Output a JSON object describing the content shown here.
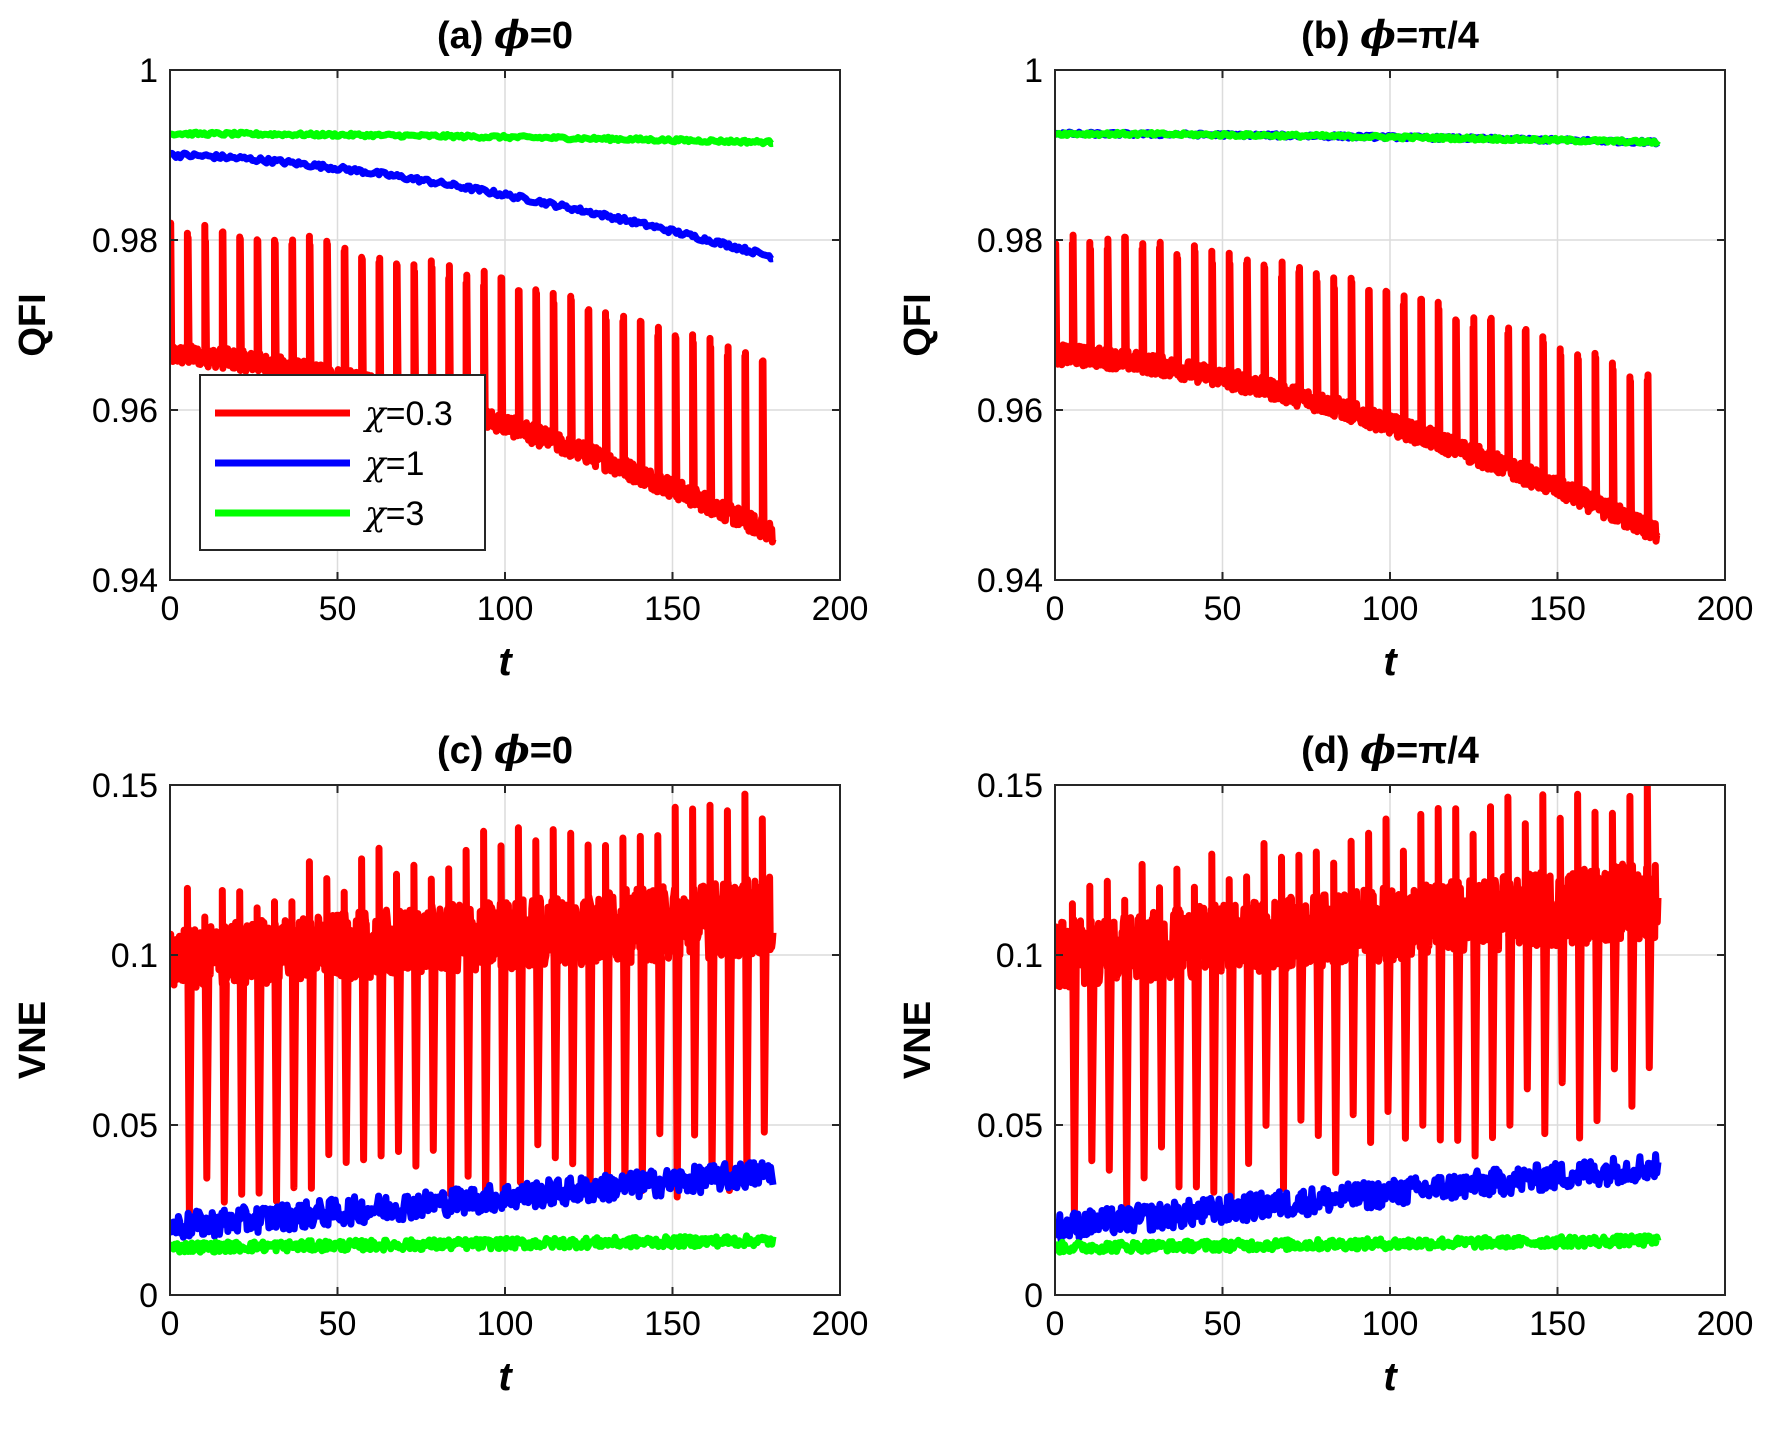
{
  "figure": {
    "legend": [
      {
        "symbol": "χ",
        "value": "=0.3",
        "color": "#ff0000"
      },
      {
        "symbol": "χ",
        "value": "=1",
        "color": "#0000ff"
      },
      {
        "symbol": "χ",
        "value": "=3",
        "color": "#00ff00"
      }
    ]
  },
  "chart_data": [
    {
      "type": "line",
      "panel": "a",
      "title_prefix": "(a) ",
      "title_symbol": "ϕ",
      "title_suffix": "=0",
      "xlabel": "t",
      "ylabel": "QFI",
      "xlim": [
        0,
        200
      ],
      "ylim": [
        0.94,
        1.0
      ],
      "x_ticks": [
        "0",
        "50",
        "100",
        "150",
        "200"
      ],
      "y_ticks": [
        "0.94",
        "0.96",
        "0.98",
        "1"
      ],
      "grid": true,
      "legend_position": "lower-left",
      "t_range": [
        0,
        180
      ],
      "series": [
        {
          "name": "χ=0.3",
          "color": "#ff0000",
          "base_start": 0.9665,
          "base_end": 0.9455,
          "spike_start": 0.981,
          "spike_end": 0.965,
          "period": 5.2,
          "noise": 0.0012
        },
        {
          "name": "χ=1",
          "color": "#0000ff",
          "start": 0.99,
          "end": 0.978,
          "noise": 0.0003
        },
        {
          "name": "χ=3",
          "color": "#00ff00",
          "start": 0.9925,
          "end": 0.9915,
          "noise": 0.0002
        }
      ]
    },
    {
      "type": "line",
      "panel": "b",
      "title_prefix": "(b) ",
      "title_symbol": "ϕ",
      "title_suffix": "=π/4",
      "xlabel": "t",
      "ylabel": "QFI",
      "xlim": [
        0,
        200
      ],
      "ylim": [
        0.94,
        1.0
      ],
      "x_ticks": [
        "0",
        "50",
        "100",
        "150",
        "200"
      ],
      "y_ticks": [
        "0.94",
        "0.96",
        "0.98",
        "1"
      ],
      "grid": true,
      "t_range": [
        0,
        180
      ],
      "series": [
        {
          "name": "χ=0.3",
          "color": "#ff0000",
          "base_start": 0.9665,
          "base_end": 0.9455,
          "spike_start": 0.98,
          "spike_end": 0.963,
          "period": 5.2,
          "noise": 0.0012
        },
        {
          "name": "χ=1",
          "color": "#0000ff",
          "start": 0.9925,
          "end": 0.9915,
          "noise": 0.0002
        },
        {
          "name": "χ=3",
          "color": "#00ff00",
          "start": 0.9925,
          "end": 0.9915,
          "noise": 0.0002
        }
      ]
    },
    {
      "type": "line",
      "panel": "c",
      "title_prefix": "(c) ",
      "title_symbol": "ϕ",
      "title_suffix": "=0",
      "xlabel": "t",
      "ylabel": "VNE",
      "xlim": [
        0,
        200
      ],
      "ylim": [
        0,
        0.15
      ],
      "x_ticks": [
        "0",
        "50",
        "100",
        "150",
        "200"
      ],
      "y_ticks": [
        "0",
        "0.05",
        "0.1",
        "0.15"
      ],
      "grid": true,
      "t_range": [
        0,
        180
      ],
      "series": [
        {
          "name": "χ=0.3",
          "color": "#ff0000",
          "band_low_start": 0.09,
          "band_low_end": 0.1,
          "band_high_start": 0.108,
          "band_high_end": 0.123,
          "spike_start": 0.115,
          "spike_end": 0.145,
          "dip_start": 0.02,
          "dip_end": 0.03,
          "period": 5.2
        },
        {
          "name": "χ=1",
          "color": "#0000ff",
          "start": 0.02,
          "end": 0.036,
          "noise": 0.004
        },
        {
          "name": "χ=3",
          "color": "#00ff00",
          "start": 0.014,
          "end": 0.016,
          "noise": 0.0015
        }
      ]
    },
    {
      "type": "line",
      "panel": "d",
      "title_prefix": "(d) ",
      "title_symbol": "ϕ",
      "title_suffix": "=π/4",
      "xlabel": "t",
      "ylabel": "VNE",
      "xlim": [
        0,
        200
      ],
      "ylim": [
        0,
        0.15
      ],
      "x_ticks": [
        "0",
        "50",
        "100",
        "150",
        "200"
      ],
      "y_ticks": [
        "0",
        "0.05",
        "0.1",
        "0.15"
      ],
      "grid": true,
      "t_range": [
        0,
        180
      ],
      "series": [
        {
          "name": "χ=0.3",
          "color": "#ff0000",
          "band_low_start": 0.09,
          "band_low_end": 0.105,
          "band_high_start": 0.11,
          "band_high_end": 0.128,
          "spike_start": 0.118,
          "spike_end": 0.15,
          "dip_start": 0.02,
          "dip_end": 0.05,
          "period": 5.2
        },
        {
          "name": "χ=1",
          "color": "#0000ff",
          "start": 0.02,
          "end": 0.038,
          "noise": 0.004
        },
        {
          "name": "χ=3",
          "color": "#00ff00",
          "start": 0.014,
          "end": 0.016,
          "noise": 0.0015
        }
      ]
    }
  ]
}
